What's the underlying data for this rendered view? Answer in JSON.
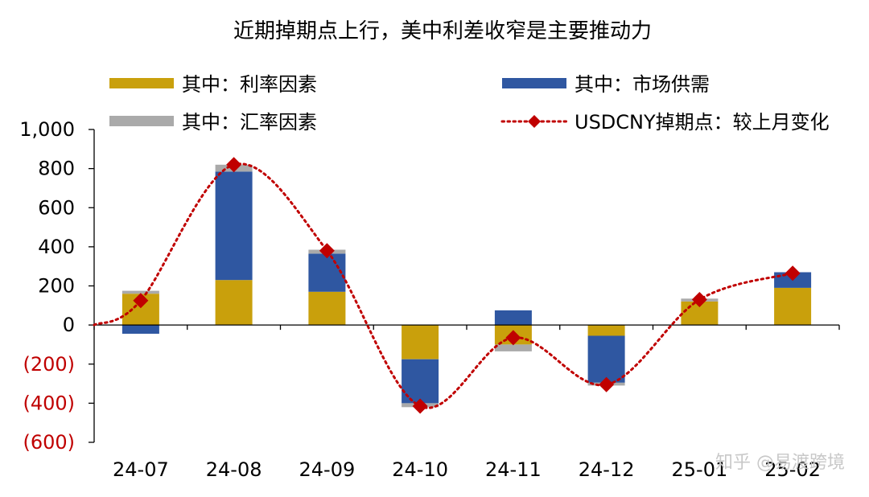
{
  "chart_data": {
    "type": "bar",
    "title": "近期掉期点上行，美中利差收窄是主要推动力",
    "categories": [
      "24-07",
      "24-08",
      "24-09",
      "24-10",
      "24-11",
      "24-12",
      "25-01",
      "25-02"
    ],
    "series": [
      {
        "name": "其中：利率因素",
        "kind": "stacked-bar",
        "color": "#c9a00c",
        "values": [
          160,
          230,
          170,
          -175,
          -100,
          -55,
          120,
          190
        ]
      },
      {
        "name": "其中：市场供需",
        "kind": "stacked-bar",
        "color": "#2f57a1",
        "values": [
          -45,
          555,
          195,
          -225,
          75,
          -240,
          0,
          80
        ]
      },
      {
        "name": "其中：汇率因素",
        "kind": "stacked-bar",
        "color": "#aaaaaa",
        "values": [
          15,
          35,
          20,
          -20,
          -35,
          -15,
          15,
          0
        ]
      },
      {
        "name": "USDCNY掉期点：较上月变化",
        "kind": "line",
        "color": "#c00000",
        "line_style": "dotted",
        "marker": "diamond",
        "values": [
          125,
          820,
          380,
          -415,
          -65,
          -305,
          130,
          265
        ]
      }
    ],
    "ylim": [
      -600,
      1000
    ],
    "yticks": [
      1000,
      800,
      600,
      400,
      200,
      0,
      -200,
      -400,
      -600
    ],
    "ytick_labels": [
      "1,000",
      "800",
      "600",
      "400",
      "200",
      "0",
      "(200)",
      "(400)",
      "(600)"
    ],
    "ytick_colors": {
      "positive": "#000000",
      "negative": "#c00000"
    },
    "legend": "top",
    "grid": false,
    "watermark": "知乎 @易渡跨境"
  }
}
